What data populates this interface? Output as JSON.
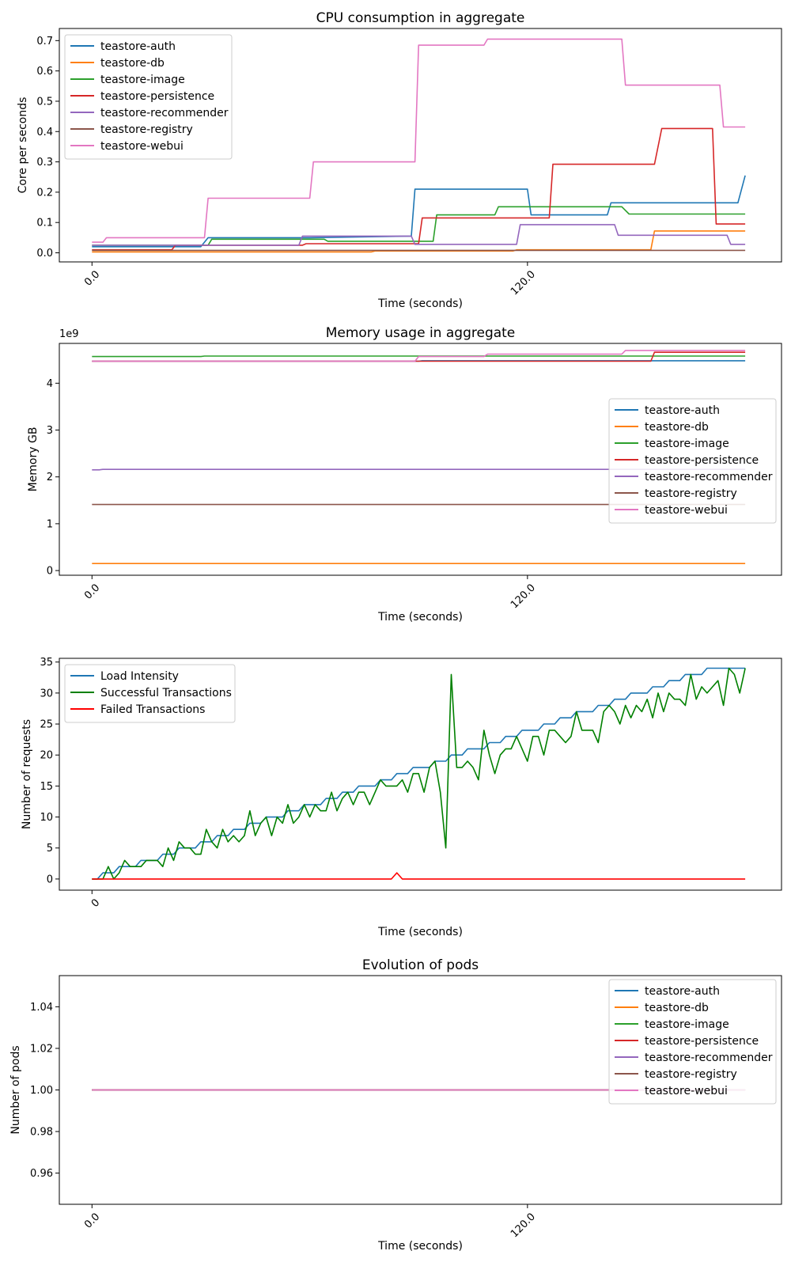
{
  "palette": {
    "teastore-auth": "#1f77b4",
    "teastore-db": "#ff7f0e",
    "teastore-image": "#2ca02c",
    "teastore-persistence": "#d62728",
    "teastore-recommender": "#9467bd",
    "teastore-registry": "#8c564b",
    "teastore-webui": "#e377c2",
    "Load Intensity": "#1f77b4",
    "Successful Transactions": "#008000",
    "Failed Transactions": "#ff0000"
  },
  "chart_data": [
    {
      "type": "line",
      "title": "CPU consumption in aggregate",
      "xlabel": "Time (seconds)",
      "ylabel": "Core per seconds",
      "xlim": [
        -9,
        190
      ],
      "ylim": [
        -0.03,
        0.74
      ],
      "xticks": [
        0,
        120
      ],
      "xtick_labels": [
        "0.0",
        "120.0"
      ],
      "xtick_rotation": 45,
      "yticks": [
        0.0,
        0.1,
        0.2,
        0.3,
        0.4,
        0.5,
        0.6,
        0.7
      ],
      "ytick_labels": [
        "0.0",
        "0.1",
        "0.2",
        "0.3",
        "0.4",
        "0.5",
        "0.6",
        "0.7"
      ],
      "grid": false,
      "legend_position": "upper-left",
      "series": [
        {
          "name": "teastore-auth",
          "x": [
            0,
            30,
            32,
            60,
            88,
            89,
            120,
            121,
            142,
            143,
            178,
            180
          ],
          "y": [
            0.02,
            0.02,
            0.05,
            0.05,
            0.055,
            0.21,
            0.21,
            0.125,
            0.125,
            0.165,
            0.165,
            0.255
          ]
        },
        {
          "name": "teastore-db",
          "x": [
            0,
            77,
            78,
            116,
            117,
            154,
            155,
            180
          ],
          "y": [
            0.003,
            0.003,
            0.006,
            0.006,
            0.01,
            0.01,
            0.072,
            0.072
          ]
        },
        {
          "name": "teastore-image",
          "x": [
            0,
            32,
            33,
            64,
            65,
            94,
            95,
            111,
            112,
            146,
            148,
            180
          ],
          "y": [
            0.025,
            0.025,
            0.045,
            0.045,
            0.038,
            0.038,
            0.125,
            0.125,
            0.152,
            0.152,
            0.128,
            0.128
          ]
        },
        {
          "name": "teastore-persistence",
          "x": [
            0,
            22,
            23,
            58,
            59,
            90,
            91,
            126,
            127,
            155,
            157,
            171,
            172,
            180
          ],
          "y": [
            0.01,
            0.01,
            0.025,
            0.025,
            0.03,
            0.03,
            0.115,
            0.115,
            0.292,
            0.292,
            0.41,
            0.41,
            0.095,
            0.095
          ]
        },
        {
          "name": "teastore-recommender",
          "x": [
            0,
            57,
            58,
            88,
            89,
            117,
            118,
            144,
            145,
            175,
            176,
            180
          ],
          "y": [
            0.025,
            0.025,
            0.055,
            0.055,
            0.028,
            0.028,
            0.093,
            0.093,
            0.058,
            0.058,
            0.028,
            0.028
          ]
        },
        {
          "name": "teastore-registry",
          "x": [
            0,
            180
          ],
          "y": [
            0.008,
            0.008
          ]
        },
        {
          "name": "teastore-webui",
          "x": [
            0,
            3,
            4,
            31,
            32,
            60,
            61,
            89,
            90,
            108,
            109,
            146,
            147,
            173,
            174,
            180
          ],
          "y": [
            0.035,
            0.035,
            0.05,
            0.05,
            0.18,
            0.18,
            0.3,
            0.3,
            0.685,
            0.685,
            0.705,
            0.705,
            0.553,
            0.553,
            0.415,
            0.415
          ]
        }
      ]
    },
    {
      "type": "line",
      "title": "Memory usage in aggregate",
      "xlabel": "Time (seconds)",
      "ylabel": "Memory GB",
      "y_offset_text": "1e9",
      "xlim": [
        -9,
        190
      ],
      "ylim": [
        -0.1,
        4.85
      ],
      "xticks": [
        0,
        120
      ],
      "xtick_labels": [
        "0.0",
        "120.0"
      ],
      "xtick_rotation": 45,
      "yticks": [
        0,
        1,
        2,
        3,
        4
      ],
      "ytick_labels": [
        "0",
        "1",
        "2",
        "3",
        "4"
      ],
      "grid": false,
      "legend_position": "center-right",
      "series": [
        {
          "name": "teastore-auth",
          "x": [
            0,
            90,
            91,
            154,
            155,
            180
          ],
          "y": [
            4.47,
            4.47,
            4.48,
            4.48,
            4.48,
            4.48
          ]
        },
        {
          "name": "teastore-db",
          "x": [
            0,
            180
          ],
          "y": [
            0.15,
            0.15
          ]
        },
        {
          "name": "teastore-image",
          "x": [
            0,
            30,
            31,
            180
          ],
          "y": [
            4.57,
            4.57,
            4.58,
            4.58
          ]
        },
        {
          "name": "teastore-persistence",
          "x": [
            0,
            154,
            155,
            180
          ],
          "y": [
            4.47,
            4.47,
            4.66,
            4.66
          ]
        },
        {
          "name": "teastore-recommender",
          "x": [
            0,
            2,
            3,
            180
          ],
          "y": [
            2.15,
            2.15,
            2.16,
            2.16
          ]
        },
        {
          "name": "teastore-registry",
          "x": [
            0,
            180
          ],
          "y": [
            1.41,
            1.41
          ]
        },
        {
          "name": "teastore-webui",
          "x": [
            0,
            89,
            90,
            108,
            109,
            146,
            147,
            180
          ],
          "y": [
            4.47,
            4.47,
            4.57,
            4.57,
            4.62,
            4.62,
            4.7,
            4.7
          ]
        }
      ]
    },
    {
      "type": "line",
      "title": "",
      "xlabel": "Time (seconds)",
      "ylabel": "Number of requests",
      "xlim": [
        -9,
        190
      ],
      "ylim": [
        -1.8,
        35.6
      ],
      "xticks": [
        0
      ],
      "xtick_labels": [
        "0"
      ],
      "xtick_rotation": 45,
      "yticks": [
        0,
        5,
        10,
        15,
        20,
        25,
        30,
        35
      ],
      "ytick_labels": [
        "0",
        "5",
        "10",
        "15",
        "20",
        "25",
        "30",
        "35"
      ],
      "grid": false,
      "legend_position": "upper-left",
      "x": [
        0,
        1.5,
        3,
        4.5,
        6,
        7.5,
        9,
        10.5,
        12,
        13.5,
        15,
        16.5,
        18,
        19.5,
        21,
        22.5,
        24,
        25.5,
        27,
        28.5,
        30,
        31.5,
        33,
        34.5,
        36,
        37.5,
        39,
        40.5,
        42,
        43.5,
        45,
        46.5,
        48,
        49.5,
        51,
        52.5,
        54,
        55.5,
        57,
        58.5,
        60,
        61.5,
        63,
        64.5,
        66,
        67.5,
        69,
        70.5,
        72,
        73.5,
        75,
        76.5,
        78,
        79.5,
        81,
        82.5,
        84,
        85.5,
        87,
        88.5,
        90,
        91.5,
        93,
        94.5,
        96,
        97.5,
        99,
        100.5,
        102,
        103.5,
        105,
        106.5,
        108,
        109.5,
        111,
        112.5,
        114,
        115.5,
        117,
        118.5,
        120,
        121.5,
        123,
        124.5,
        126,
        127.5,
        129,
        130.5,
        132,
        133.5,
        135,
        136.5,
        138,
        139.5,
        141,
        142.5,
        144,
        145.5,
        147,
        148.5,
        150,
        151.5,
        153,
        154.5,
        156,
        157.5,
        159,
        160.5,
        162,
        163.5,
        165,
        166.5,
        168,
        169.5,
        171,
        172.5,
        174,
        175.5,
        177,
        178.5,
        180
      ],
      "series": [
        {
          "name": "Load Intensity",
          "y": [
            0,
            0,
            1,
            1,
            1,
            2,
            2,
            2,
            2,
            3,
            3,
            3,
            3,
            4,
            4,
            4,
            5,
            5,
            5,
            5,
            6,
            6,
            6,
            7,
            7,
            7,
            8,
            8,
            8,
            9,
            9,
            9,
            10,
            10,
            10,
            10,
            11,
            11,
            11,
            12,
            12,
            12,
            12,
            13,
            13,
            13,
            14,
            14,
            14,
            15,
            15,
            15,
            15,
            16,
            16,
            16,
            17,
            17,
            17,
            18,
            18,
            18,
            18,
            19,
            19,
            19,
            20,
            20,
            20,
            21,
            21,
            21,
            21,
            22,
            22,
            22,
            23,
            23,
            23,
            24,
            24,
            24,
            24,
            25,
            25,
            25,
            26,
            26,
            26,
            27,
            27,
            27,
            27,
            28,
            28,
            28,
            29,
            29,
            29,
            30,
            30,
            30,
            30,
            31,
            31,
            31,
            32,
            32,
            32,
            33,
            33,
            33,
            33,
            34,
            34,
            34,
            34,
            34,
            34,
            34,
            34
          ]
        },
        {
          "name": "Successful Transactions",
          "y": [
            0,
            0,
            0,
            2,
            0,
            1,
            3,
            2,
            2,
            2,
            3,
            3,
            3,
            2,
            5,
            3,
            6,
            5,
            5,
            4,
            4,
            8,
            6,
            5,
            8,
            6,
            7,
            6,
            7,
            11,
            7,
            9,
            10,
            7,
            10,
            9,
            12,
            9,
            10,
            12,
            10,
            12,
            11,
            11,
            14,
            11,
            13,
            14,
            12,
            14,
            14,
            12,
            14,
            16,
            15,
            15,
            15,
            16,
            14,
            17,
            17,
            14,
            18,
            19,
            14,
            5,
            33,
            18,
            18,
            19,
            18,
            16,
            24,
            20,
            17,
            20,
            21,
            21,
            23,
            21,
            19,
            23,
            23,
            20,
            24,
            24,
            23,
            22,
            23,
            27,
            24,
            24,
            24,
            22,
            27,
            28,
            27,
            25,
            28,
            26,
            28,
            27,
            29,
            26,
            30,
            27,
            30,
            29,
            29,
            28,
            33,
            29,
            31,
            30,
            31,
            32,
            28,
            34,
            33,
            30,
            34
          ]
        },
        {
          "name": "Failed Transactions",
          "y": [
            0,
            0,
            0,
            0,
            0,
            0,
            0,
            0,
            0,
            0,
            0,
            0,
            0,
            0,
            0,
            0,
            0,
            0,
            0,
            0,
            0,
            0,
            0,
            0,
            0,
            0,
            0,
            0,
            0,
            0,
            0,
            0,
            0,
            0,
            0,
            0,
            0,
            0,
            0,
            0,
            0,
            0,
            0,
            0,
            0,
            0,
            0,
            0,
            0,
            0,
            0,
            0,
            0,
            0,
            0,
            0,
            1,
            0,
            0,
            0,
            0,
            0,
            0,
            0,
            0,
            0,
            0,
            0,
            0,
            0,
            0,
            0,
            0,
            0,
            0,
            0,
            0,
            0,
            0,
            0,
            0,
            0,
            0,
            0,
            0,
            0,
            0,
            0,
            0,
            0,
            0,
            0,
            0,
            0,
            0,
            0,
            0,
            0,
            0,
            0,
            0,
            0,
            0,
            0,
            0,
            0,
            0,
            0,
            0,
            0,
            0,
            0,
            0,
            0,
            0,
            0,
            0,
            0,
            0,
            0,
            0
          ]
        }
      ]
    },
    {
      "type": "line",
      "title": "Evolution of pods",
      "xlabel": "Time (seconds)",
      "ylabel": "Number of pods",
      "xlim": [
        -9,
        190
      ],
      "ylim": [
        0.945,
        1.055
      ],
      "xticks": [
        0,
        120
      ],
      "xtick_labels": [
        "0.0",
        "120.0"
      ],
      "xtick_rotation": 45,
      "yticks": [
        0.96,
        0.98,
        1.0,
        1.02,
        1.04
      ],
      "ytick_labels": [
        "0.96",
        "0.98",
        "1.00",
        "1.02",
        "1.04"
      ],
      "grid": false,
      "legend_position": "upper-right",
      "series": [
        {
          "name": "teastore-auth",
          "x": [
            0,
            180
          ],
          "y": [
            1,
            1
          ]
        },
        {
          "name": "teastore-db",
          "x": [
            0,
            180
          ],
          "y": [
            1,
            1
          ]
        },
        {
          "name": "teastore-image",
          "x": [
            0,
            180
          ],
          "y": [
            1,
            1
          ]
        },
        {
          "name": "teastore-persistence",
          "x": [
            0,
            180
          ],
          "y": [
            1,
            1
          ]
        },
        {
          "name": "teastore-recommender",
          "x": [
            0,
            180
          ],
          "y": [
            1,
            1
          ]
        },
        {
          "name": "teastore-registry",
          "x": [
            0,
            180
          ],
          "y": [
            1,
            1
          ]
        },
        {
          "name": "teastore-webui",
          "x": [
            0,
            180
          ],
          "y": [
            1,
            1
          ]
        }
      ]
    }
  ]
}
